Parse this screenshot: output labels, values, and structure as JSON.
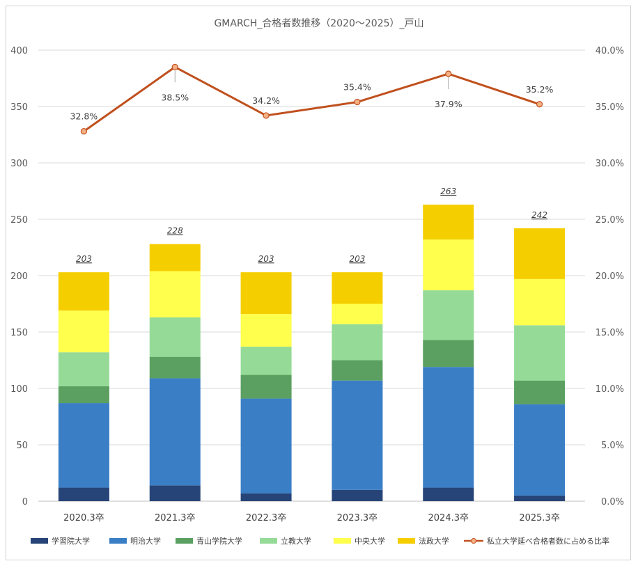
{
  "chart_data": {
    "type": "bar",
    "stacked": true,
    "title": "GMARCH_合格者数推移（2020～2025）_戸山",
    "categories": [
      "2020.3卒",
      "2021.3卒",
      "2022.3卒",
      "2023.3卒",
      "2024.3卒",
      "2025.3卒"
    ],
    "series": [
      {
        "name": "学習院大学",
        "color": "#264478",
        "values": [
          12,
          14,
          7,
          10,
          12,
          5
        ]
      },
      {
        "name": "明治大学",
        "color": "#3A7EC6",
        "values": [
          75,
          95,
          84,
          97,
          107,
          81
        ]
      },
      {
        "name": "青山学院大学",
        "color": "#5BA060",
        "values": [
          15,
          19,
          21,
          18,
          24,
          21
        ]
      },
      {
        "name": "立教大学",
        "color": "#95DB97",
        "values": [
          30,
          35,
          25,
          32,
          44,
          49
        ]
      },
      {
        "name": "中央大学",
        "color": "#FFFF4D",
        "values": [
          37,
          41,
          29,
          18,
          45,
          41
        ]
      },
      {
        "name": "法政大学",
        "color": "#F5CE00",
        "values": [
          34,
          24,
          37,
          28,
          31,
          45
        ]
      }
    ],
    "totals": [
      "203",
      "228",
      "203",
      "203",
      "263",
      "242"
    ],
    "line_series": {
      "name": "私立大学延べ合格者数に占める比率",
      "color": "#C0501E",
      "axis": "secondary",
      "values": [
        32.8,
        38.5,
        34.2,
        35.4,
        37.9,
        35.2
      ],
      "labels": [
        "32.8%",
        "38.5%",
        "34.2%",
        "35.4%",
        "37.9%",
        "35.2%"
      ]
    },
    "ylim": [
      0,
      400
    ],
    "yticks": [
      "0",
      "50",
      "100",
      "150",
      "200",
      "250",
      "300",
      "350",
      "400"
    ],
    "y2lim": [
      0,
      40
    ],
    "y2ticks": [
      "0.0%",
      "5.0%",
      "10.0%",
      "15.0%",
      "20.0%",
      "25.0%",
      "30.0%",
      "35.0%",
      "40.0%"
    ],
    "grid": true,
    "legend": "bottom"
  }
}
